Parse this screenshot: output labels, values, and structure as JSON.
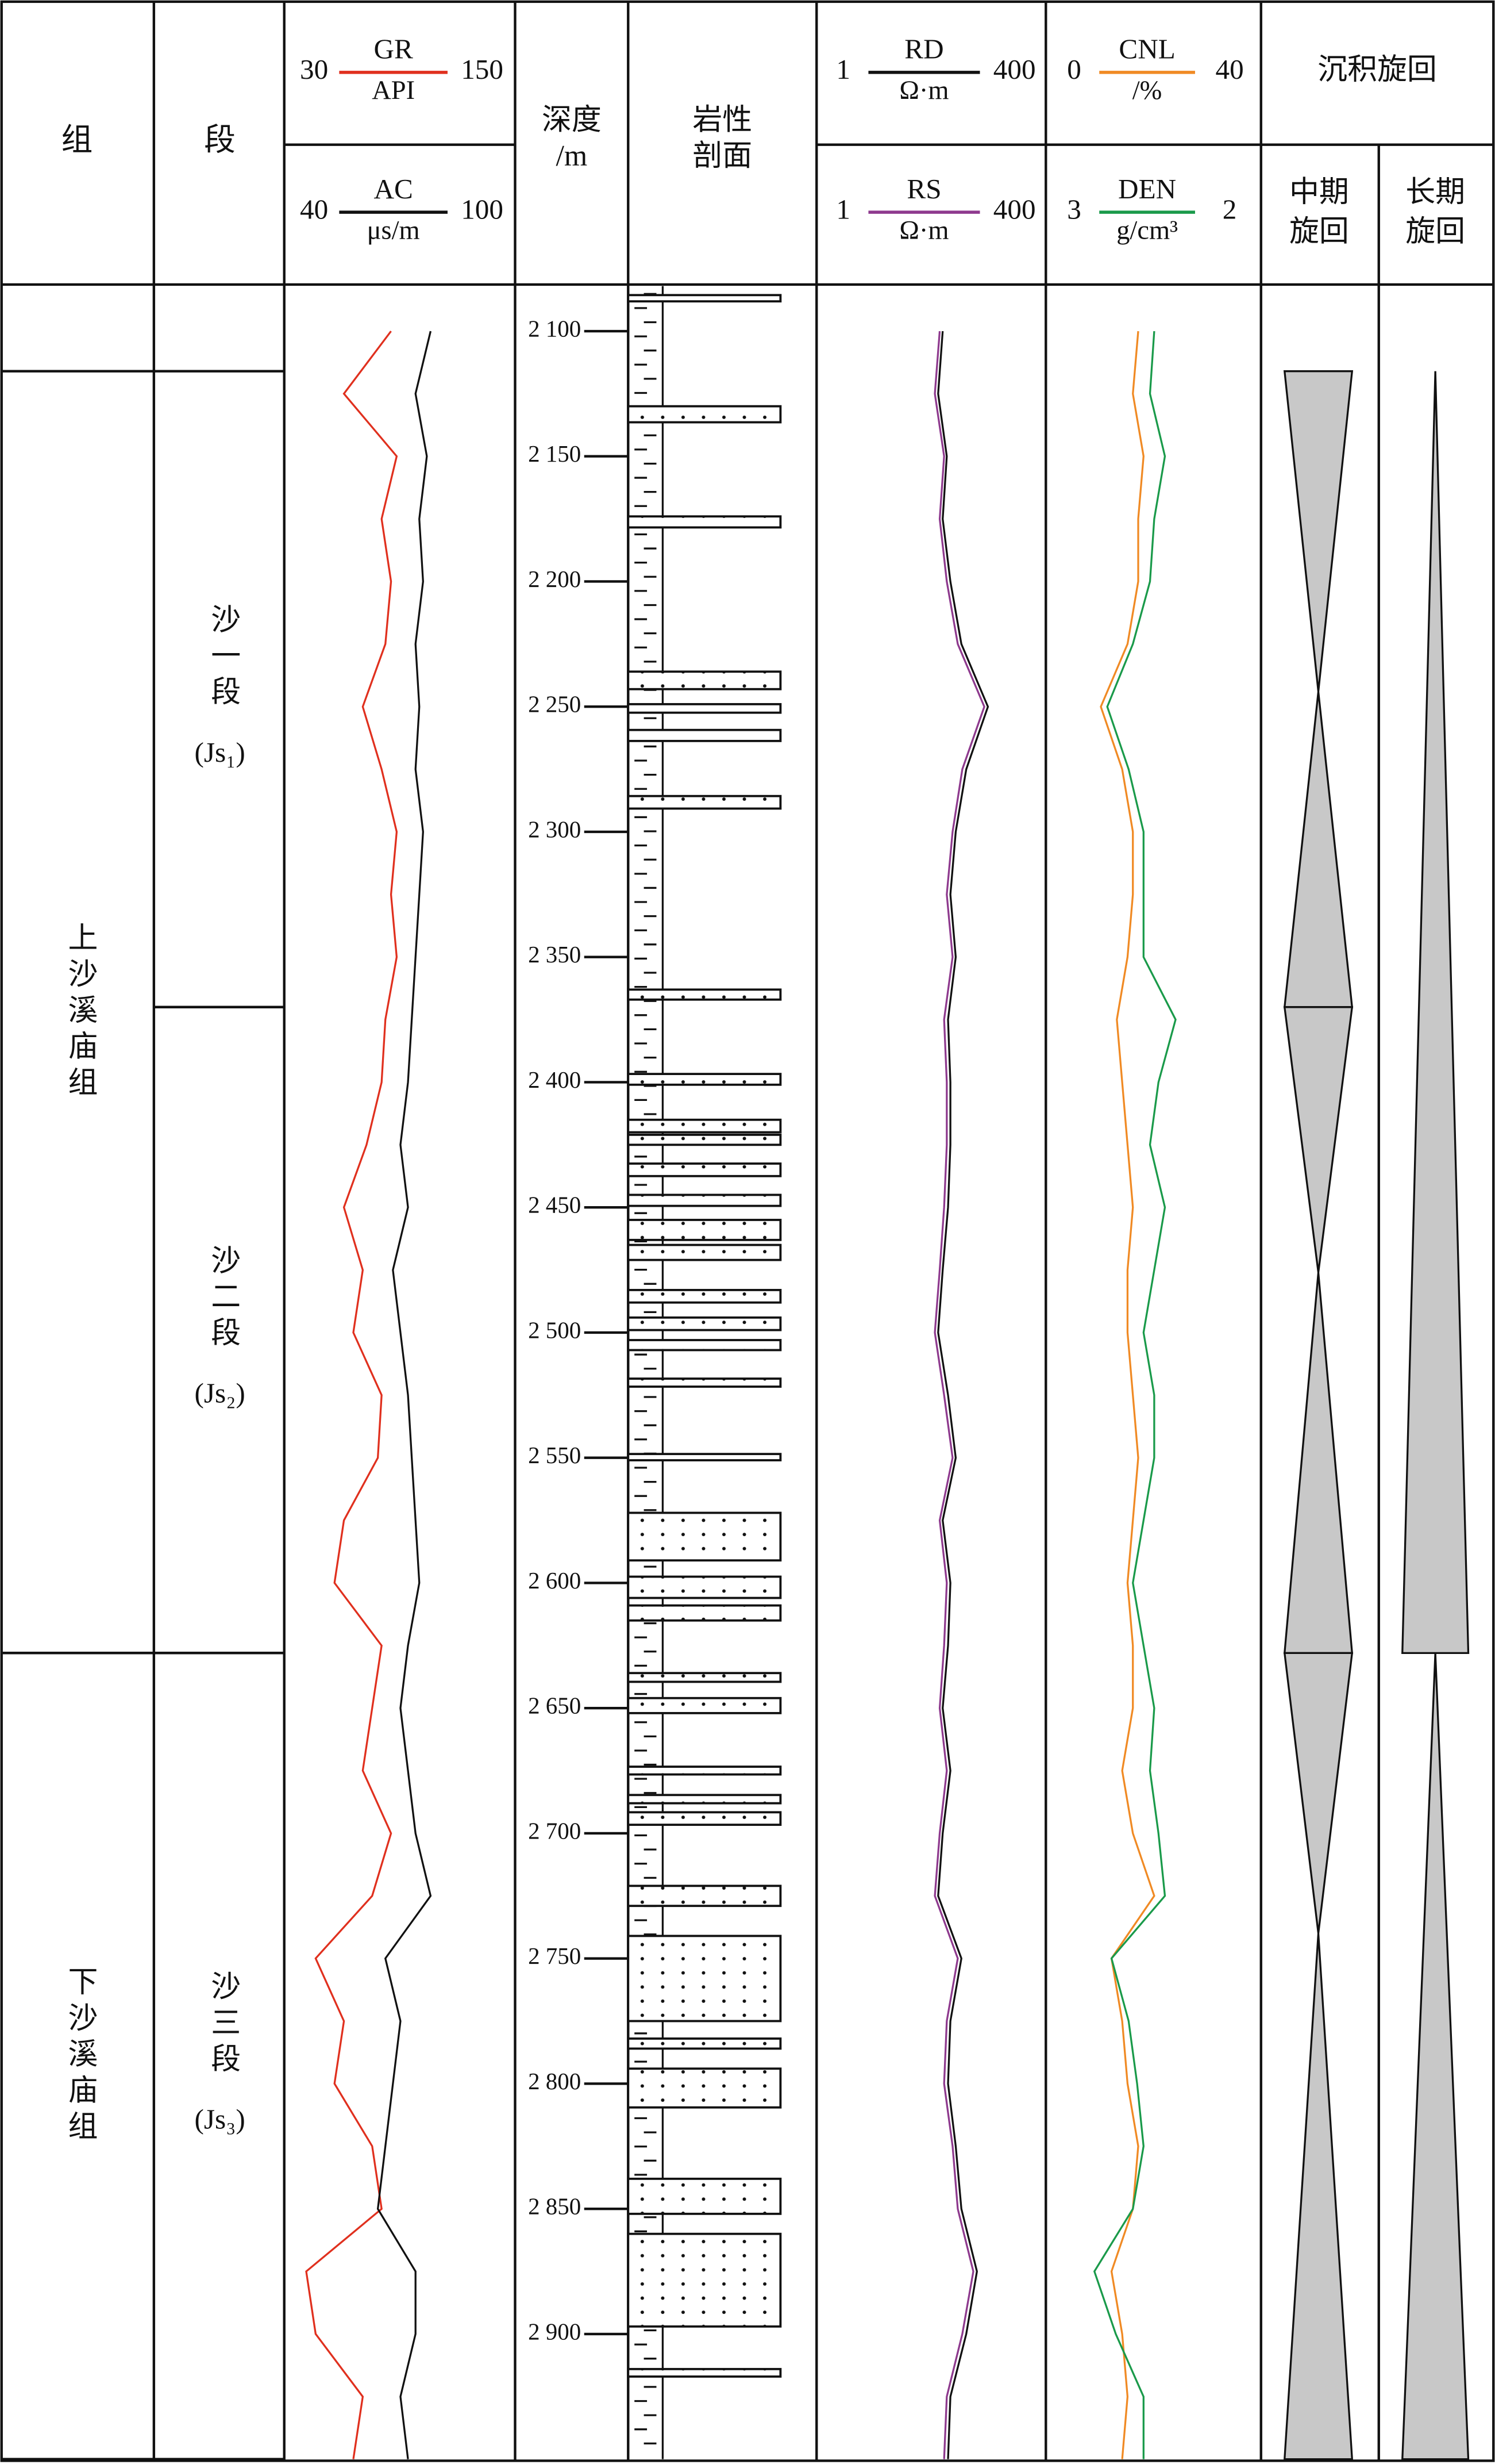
{
  "chart_data": {
    "type": "well_log",
    "formation_title": "组",
    "member_title": "段",
    "depth_title": "深度",
    "depth_unit": "/m",
    "lithology_title": [
      "岩性",
      "剖面"
    ],
    "cycles_title": "沉积旋回",
    "medium_title": [
      "中期",
      "旋回"
    ],
    "long_title": [
      "长期",
      "旋回"
    ],
    "ylim": [
      2082,
      2950
    ],
    "yticks": [
      {
        "value": 2100,
        "label": "2 100"
      },
      {
        "value": 2150,
        "label": "2 150"
      },
      {
        "value": 2200,
        "label": "2 200"
      },
      {
        "value": 2250,
        "label": "2 250"
      },
      {
        "value": 2300,
        "label": "2 300"
      },
      {
        "value": 2350,
        "label": "2 350"
      },
      {
        "value": 2400,
        "label": "2 400"
      },
      {
        "value": 2450,
        "label": "2 450"
      },
      {
        "value": 2500,
        "label": "2 500"
      },
      {
        "value": 2550,
        "label": "2 550"
      },
      {
        "value": 2600,
        "label": "2 600"
      },
      {
        "value": 2650,
        "label": "2 650"
      },
      {
        "value": 2700,
        "label": "2 700"
      },
      {
        "value": 2750,
        "label": "2 750"
      },
      {
        "value": 2800,
        "label": "2 800"
      },
      {
        "value": 2850,
        "label": "2 850"
      },
      {
        "value": 2900,
        "label": "2 900"
      }
    ],
    "formations": [
      {
        "name": "上沙溪庙组",
        "top": 2116,
        "base": 2628
      },
      {
        "name": "下沙溪庙组",
        "top": 2628,
        "base": 2950
      }
    ],
    "members": [
      {
        "name": "沙一段",
        "code": "(Js₁)",
        "top": 2116,
        "base": 2370
      },
      {
        "name": "沙二段",
        "code": "(Js₂)",
        "top": 2370,
        "base": 2628
      },
      {
        "name": "沙三段",
        "code": "(Js₃)",
        "top": 2628,
        "base": 2950
      }
    ],
    "sandstone": [
      [
        2085.6,
        2088.1
      ],
      [
        2130,
        2136.4
      ],
      [
        2174,
        2178.4
      ],
      [
        2236,
        2243
      ],
      [
        2249,
        2252.4
      ],
      [
        2259.3,
        2263.7
      ],
      [
        2285.7,
        2290.7
      ],
      [
        2363,
        2367
      ],
      [
        2396.7,
        2401
      ],
      [
        2415,
        2420
      ],
      [
        2421,
        2425
      ],
      [
        2432.5,
        2437.5
      ],
      [
        2445,
        2449.4
      ],
      [
        2455,
        2463
      ],
      [
        2465,
        2471
      ],
      [
        2483,
        2488
      ],
      [
        2494,
        2499
      ],
      [
        2503,
        2507
      ],
      [
        2518.4,
        2521.6
      ],
      [
        2548.5,
        2551
      ],
      [
        2572,
        2591
      ],
      [
        2597.5,
        2606
      ],
      [
        2609,
        2615
      ],
      [
        2636,
        2639.5
      ],
      [
        2646,
        2652
      ],
      [
        2673.4,
        2676.5
      ],
      [
        2684.7,
        2688
      ],
      [
        2691.6,
        2696.6
      ],
      [
        2721,
        2729
      ],
      [
        2741,
        2775
      ],
      [
        2782,
        2786
      ],
      [
        2794,
        2809.5
      ],
      [
        2838,
        2852
      ],
      [
        2860,
        2897
      ],
      [
        2914,
        2917
      ]
    ],
    "depth": [
      2100,
      2125,
      2150,
      2175,
      2200,
      2225,
      2250,
      2275,
      2300,
      2325,
      2350,
      2375,
      2400,
      2425,
      2450,
      2475,
      2500,
      2525,
      2550,
      2575,
      2600,
      2625,
      2650,
      2675,
      2700,
      2725,
      2750,
      2775,
      2800,
      2825,
      2850,
      2875,
      2900,
      2925,
      2950
    ],
    "tracks": [
      {
        "log": false,
        "curves": [
          {
            "name": "GR",
            "unit": "API",
            "color": "#e0301e",
            "xlim": [
              30,
              150
            ],
            "values": [
              85,
              60,
              88,
              80,
              85,
              82,
              70,
              80,
              88,
              85,
              88,
              82,
              80,
              72,
              60,
              70,
              65,
              80,
              78,
              60,
              55,
              80,
              75,
              70,
              85,
              75,
              45,
              60,
              55,
              75,
              80,
              40,
              45,
              70,
              65
            ]
          },
          {
            "name": "AC",
            "unit": "μs/m",
            "color": "#111111",
            "xlim": [
              40,
              100
            ],
            "values": [
              78,
              74,
              77,
              75,
              76,
              74,
              75,
              74,
              76,
              75,
              74,
              73,
              72,
              70,
              72,
              68,
              70,
              72,
              73,
              74,
              75,
              72,
              70,
              72,
              74,
              78,
              66,
              70,
              68,
              66,
              64,
              74,
              74,
              70,
              72
            ]
          }
        ]
      },
      {
        "log": true,
        "curves": [
          {
            "name": "RD",
            "unit": "Ω·m",
            "color": "#111111",
            "xlim": [
              1,
              400
            ],
            "values": [
              27,
              24,
              30,
              27,
              33,
              44,
              88,
              50,
              38,
              33,
              38,
              31,
              33,
              33,
              31,
              27,
              24,
              31,
              38,
              27,
              33,
              31,
              27,
              33,
              27,
              24,
              44,
              33,
              31,
              38,
              44,
              66,
              50,
              33,
              31
            ]
          },
          {
            "name": "RS",
            "unit": "Ω·m",
            "color": "#8e3a8e",
            "xlim": [
              1,
              400
            ],
            "values": [
              25,
              22,
              28,
              25,
              30,
              40,
              80,
              45,
              35,
              30,
              35,
              28,
              30,
              30,
              28,
              25,
              22,
              28,
              35,
              25,
              30,
              28,
              25,
              30,
              25,
              22,
              40,
              30,
              28,
              35,
              40,
              60,
              45,
              30,
              28
            ]
          }
        ]
      },
      {
        "log": false,
        "curves": [
          {
            "name": "CNL",
            "unit": "/%",
            "color": "#f08a24",
            "xlim": [
              0,
              40
            ],
            "values": [
              17,
              16,
              18,
              17,
              17,
              15,
              10,
              14,
              16,
              16,
              15,
              13,
              14,
              15,
              16,
              15,
              15,
              16,
              17,
              16,
              15,
              16,
              16,
              14,
              16,
              20,
              12,
              14,
              15,
              17,
              16,
              12,
              14,
              15,
              14
            ]
          },
          {
            "name": "DEN",
            "unit": "g/cm³",
            "color": "#1a9a4a",
            "xlim": [
              3,
              2
            ],
            "values": [
              2.5,
              2.52,
              2.45,
              2.5,
              2.52,
              2.6,
              2.72,
              2.62,
              2.55,
              2.55,
              2.55,
              2.4,
              2.48,
              2.52,
              2.45,
              2.5,
              2.55,
              2.5,
              2.5,
              2.55,
              2.6,
              2.55,
              2.5,
              2.52,
              2.48,
              2.45,
              2.7,
              2.62,
              2.58,
              2.55,
              2.6,
              2.78,
              2.68,
              2.55,
              2.55
            ]
          }
        ]
      }
    ],
    "medium_cycles": [
      {
        "top": 2116,
        "base": 2244,
        "apex": "base"
      },
      {
        "top": 2244,
        "base": 2370,
        "apex": "top"
      },
      {
        "top": 2370,
        "base": 2476,
        "apex": "base"
      },
      {
        "top": 2476,
        "base": 2628,
        "apex": "top"
      },
      {
        "top": 2628,
        "base": 2740,
        "apex": "base"
      },
      {
        "top": 2740,
        "base": 2950,
        "apex": "top"
      }
    ],
    "long_cycles": [
      {
        "top": 2116,
        "base": 2628,
        "apex": "top"
      },
      {
        "top": 2628,
        "base": 2950,
        "apex": "top"
      }
    ]
  }
}
